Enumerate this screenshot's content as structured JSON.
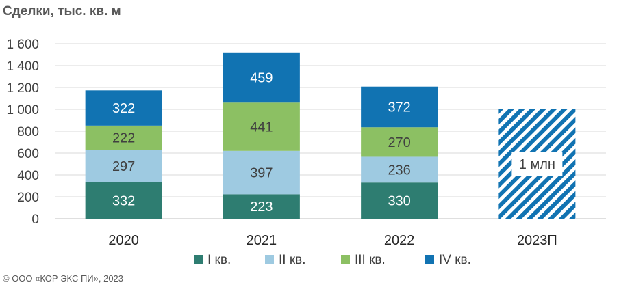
{
  "chart_data": {
    "type": "bar",
    "stacked": true,
    "title": "Сделки, тыс. кв. м",
    "categories": [
      "2020",
      "2021",
      "2022",
      "2023П"
    ],
    "ylim": [
      0,
      1600
    ],
    "yticks": [
      0,
      200,
      400,
      600,
      800,
      1000,
      1200,
      1400,
      1600
    ],
    "ytick_labels": [
      "0",
      "200",
      "400",
      "600",
      "800",
      "1 000",
      "1 200",
      "1 400",
      "1 600"
    ],
    "grid": true,
    "legend_position": "bottom",
    "series": [
      {
        "name": "I кв.",
        "color": "#2e7d71",
        "values": [
          332,
          223,
          330,
          null
        ]
      },
      {
        "name": "II кв.",
        "color": "#9ecae1",
        "values": [
          297,
          397,
          236,
          null
        ]
      },
      {
        "name": "III кв.",
        "color": "#8cc063",
        "values": [
          222,
          441,
          270,
          null
        ]
      },
      {
        "name": "IV кв.",
        "color": "#1173b2",
        "values": [
          322,
          459,
          372,
          null
        ]
      }
    ],
    "forecast": {
      "category": "2023П",
      "value": 1000,
      "label": "1 млн",
      "pattern": "diagonal-stripes",
      "color": "#1173b2"
    }
  },
  "footer": "© ООО «КОР ЭКС ПИ», 2023"
}
